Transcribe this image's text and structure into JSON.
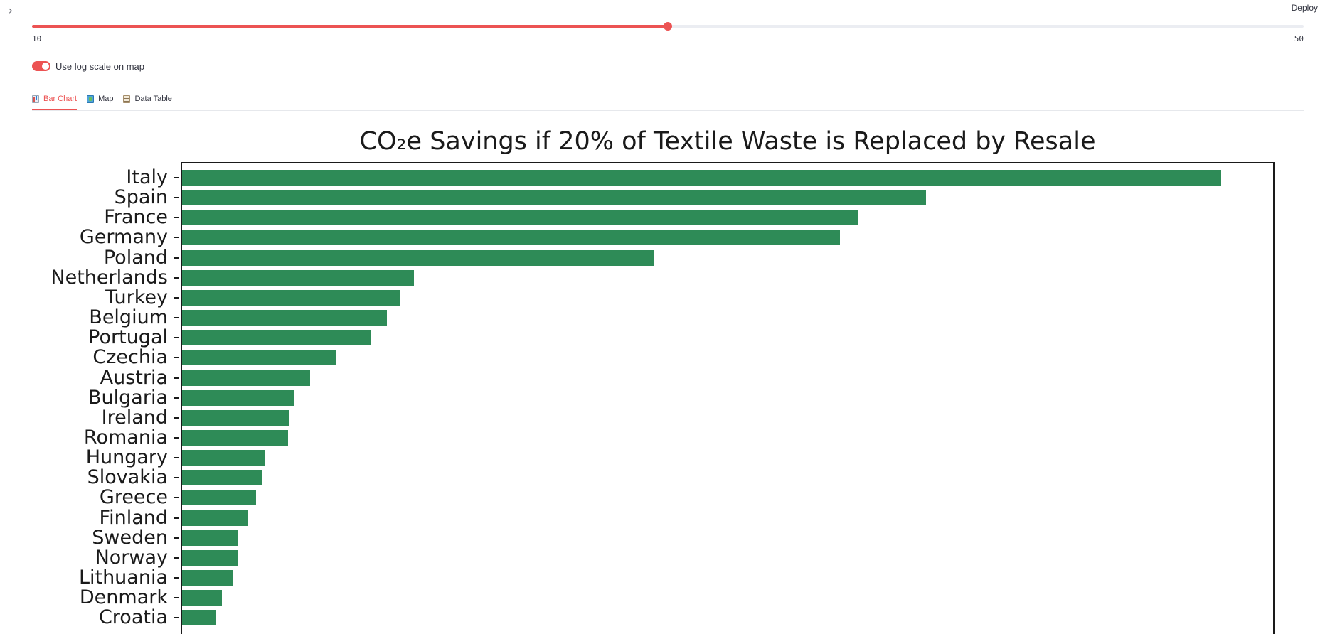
{
  "header": {
    "sidebar_toggle_icon": "chevron-right-icon",
    "deploy_label": "Deploy"
  },
  "slider": {
    "min_label": "10",
    "max_label": "50",
    "min": 10,
    "max": 50,
    "value": 30,
    "accent_color": "#ec5353"
  },
  "toggle": {
    "label": "Use log scale on map",
    "checked": true
  },
  "tabs": [
    {
      "label": "Bar Chart",
      "icon": "bar-chart-icon",
      "active": true
    },
    {
      "label": "Map",
      "icon": "map-icon",
      "active": false
    },
    {
      "label": "Data Table",
      "icon": "clipboard-icon",
      "active": false
    }
  ],
  "chart_data": {
    "type": "bar",
    "orientation": "horizontal",
    "title": "CO₂e Savings if 20% of Textile Waste is Replaced by Resale",
    "xlabel": "",
    "ylabel": "",
    "bar_color": "#2e8b57",
    "xlim": [
      0,
      1050
    ],
    "categories": [
      "Italy",
      "Spain",
      "France",
      "Germany",
      "Poland",
      "Netherlands",
      "Turkey",
      "Belgium",
      "Portugal",
      "Czechia",
      "Austria",
      "Bulgaria",
      "Ireland",
      "Romania",
      "Hungary",
      "Slovakia",
      "Greece",
      "Finland",
      "Sweden",
      "Norway",
      "Lithuania",
      "Denmark",
      "Croatia"
    ],
    "values": [
      1000,
      716,
      651,
      633,
      454,
      223,
      210,
      197,
      182,
      148,
      123,
      108,
      103,
      102,
      80,
      77,
      71,
      63,
      54,
      54,
      49,
      38,
      33
    ],
    "grid": false,
    "legend": "none"
  }
}
